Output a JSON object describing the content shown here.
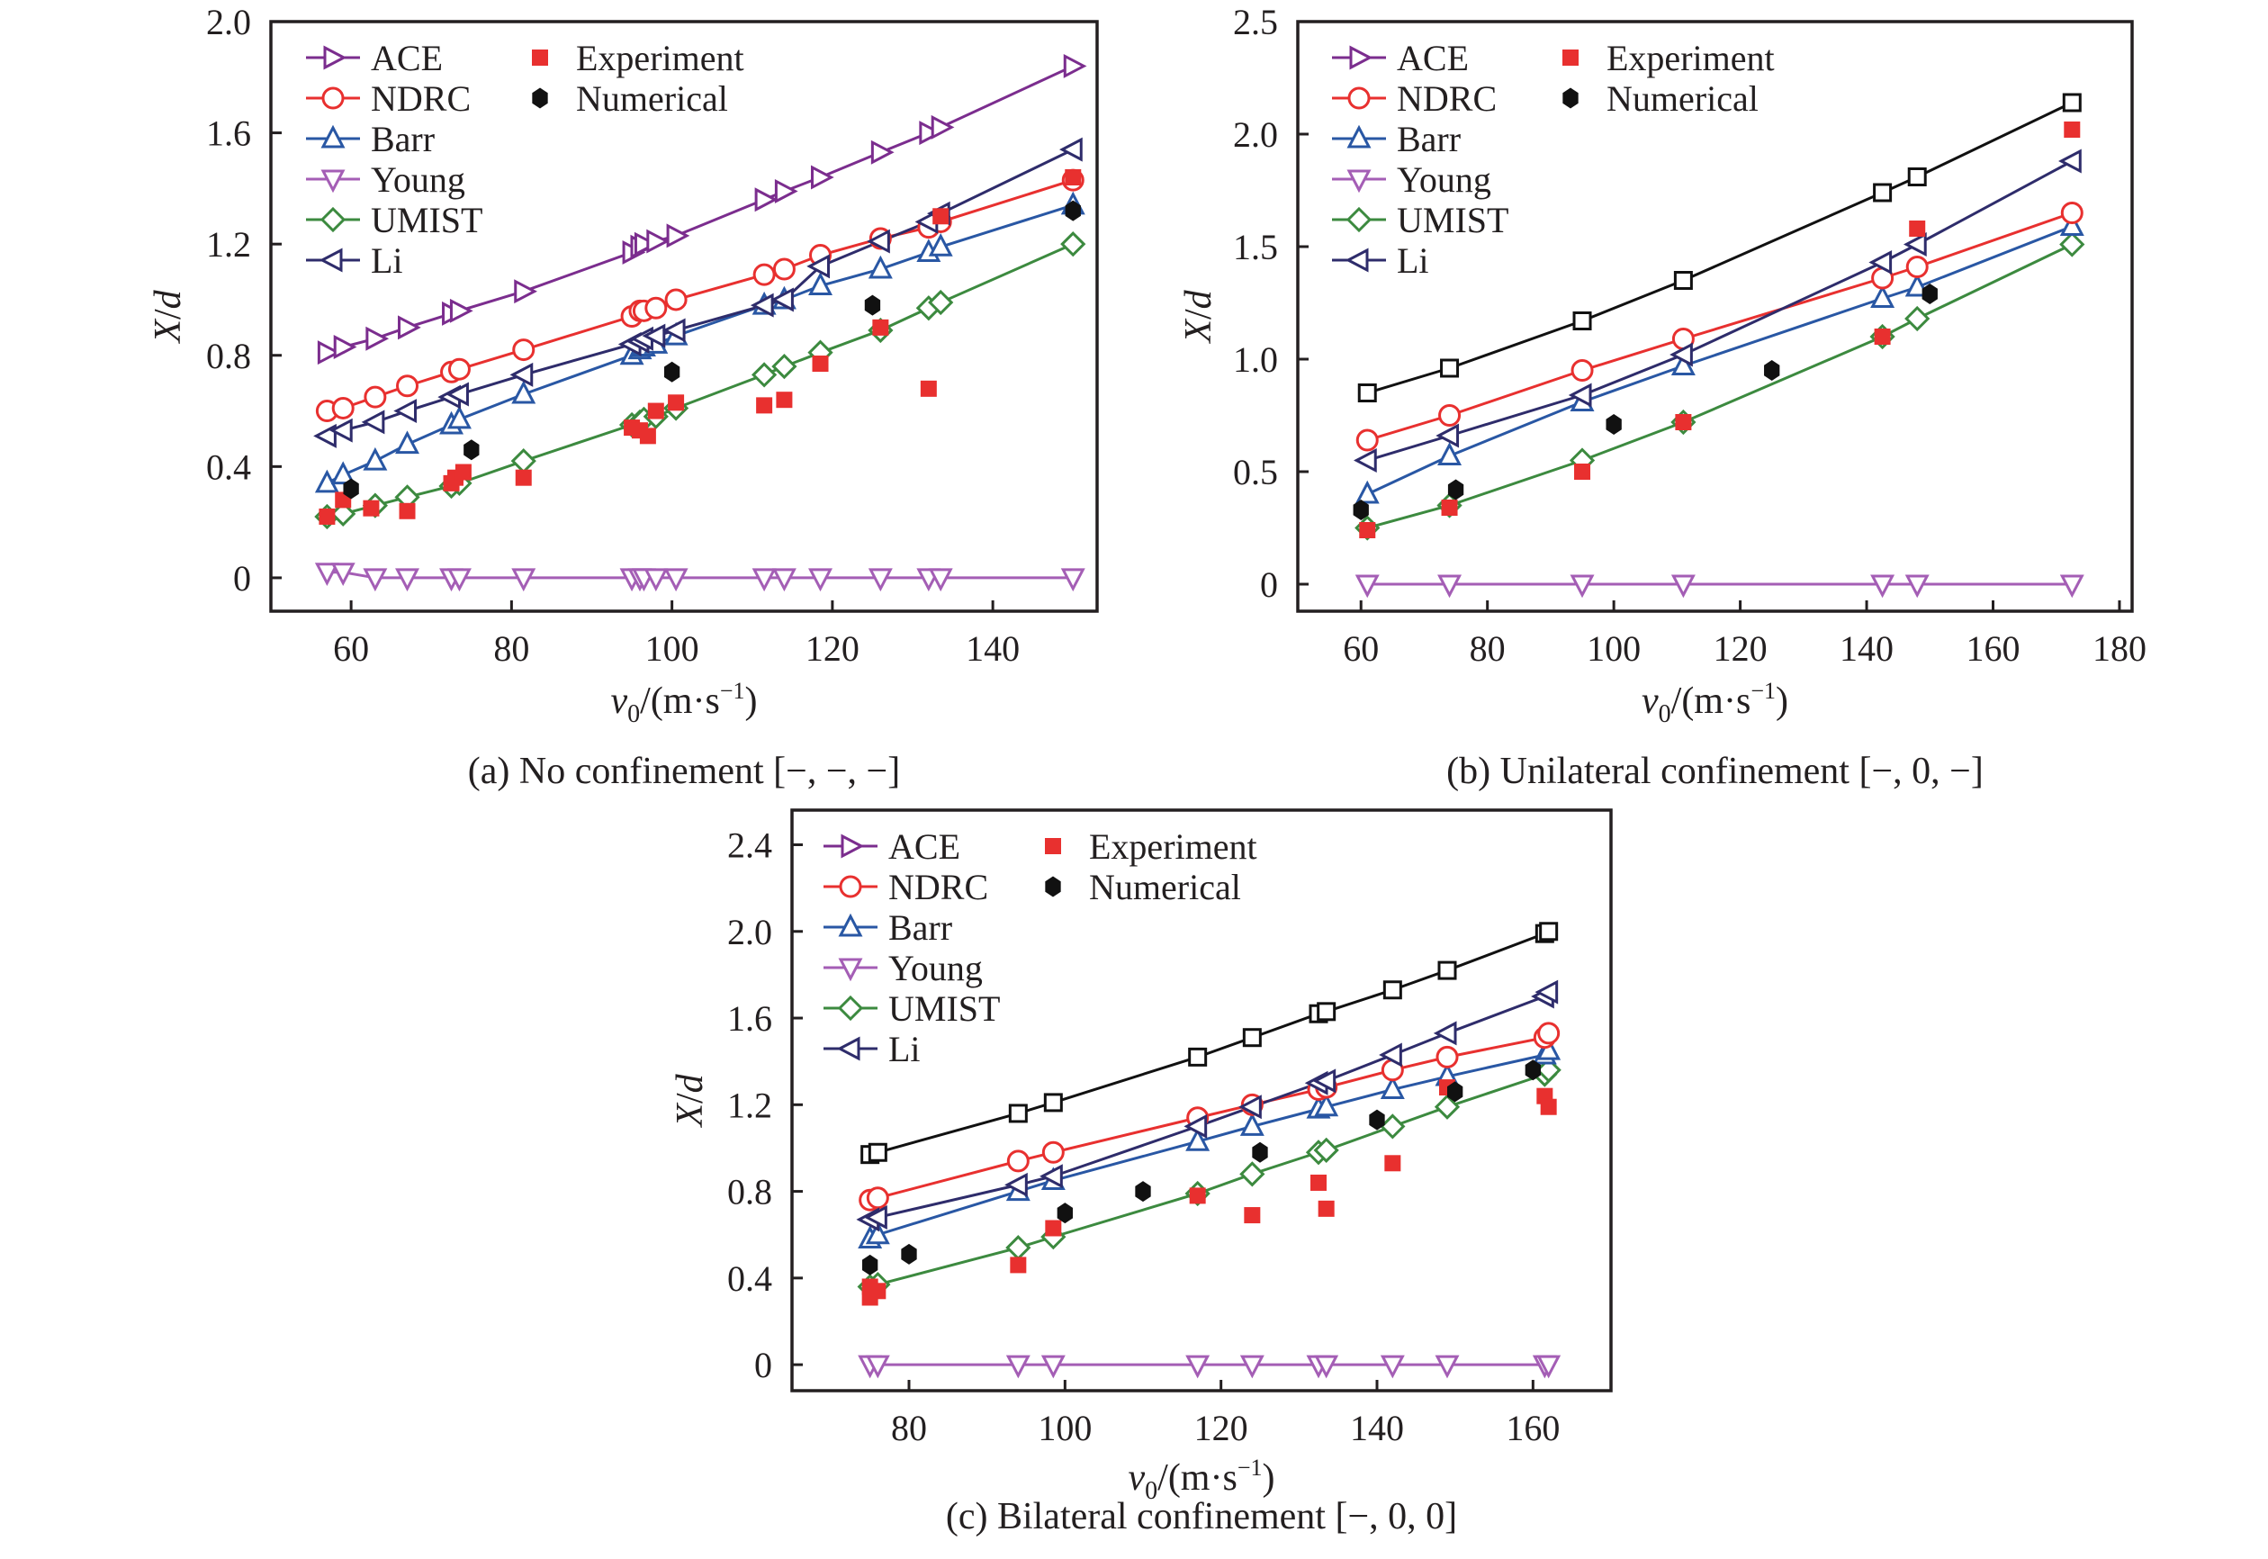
{
  "chart_data": [
    {
      "type": "line",
      "panel": "a",
      "caption": "(a) No confinement [−, −, −]",
      "xlabel_var": "v",
      "xlabel_sub": "0",
      "xlabel_unit": "/(m·s",
      "xlabel_sup": "−1",
      "xlabel_close": ")",
      "ylabel_var1": "X",
      "ylabel_sep": "/",
      "ylabel_var2": "d",
      "xlim": [
        50,
        153
      ],
      "ylim": [
        -0.12,
        2.0
      ],
      "xticks": [
        60,
        80,
        100,
        120,
        140
      ],
      "xtick_labels": [
        "60",
        "80",
        "100",
        "120",
        "140"
      ],
      "yticks": [
        0,
        0.4,
        0.8,
        1.2,
        1.6,
        2.0
      ],
      "ytick_labels": [
        "0",
        "0.4",
        "0.8",
        "1.2",
        "1.6",
        "2.0"
      ],
      "legend_position": "top-left",
      "series": [
        {
          "name": "ACE",
          "marker": "triangle-right",
          "color": "#7b2d8e",
          "x": [
            57,
            59,
            63,
            67,
            72.5,
            73.5,
            81.5,
            95,
            96,
            96.5,
            98,
            100.5,
            111.5,
            114,
            118.5,
            126,
            132,
            133.5,
            150
          ],
          "y": [
            0.81,
            0.83,
            0.86,
            0.9,
            0.95,
            0.96,
            1.03,
            1.17,
            1.19,
            1.2,
            1.21,
            1.23,
            1.36,
            1.39,
            1.44,
            1.53,
            1.6,
            1.62,
            1.84
          ]
        },
        {
          "name": "NDRC",
          "marker": "circle",
          "color": "#e8302f",
          "x": [
            57,
            59,
            63,
            67,
            72.5,
            73.5,
            81.5,
            95,
            96,
            96.5,
            98,
            100.5,
            111.5,
            114,
            118.5,
            126,
            132,
            133.5,
            150
          ],
          "y": [
            0.6,
            0.61,
            0.65,
            0.69,
            0.74,
            0.75,
            0.82,
            0.94,
            0.96,
            0.96,
            0.97,
            1.0,
            1.09,
            1.11,
            1.16,
            1.22,
            1.26,
            1.28,
            1.43
          ]
        },
        {
          "name": "Barr",
          "marker": "triangle-up",
          "color": "#2957a4",
          "x": [
            57,
            59,
            63,
            67,
            72.5,
            73.5,
            81.5,
            95,
            96,
            96.5,
            98,
            100.5,
            111.5,
            114,
            118.5,
            126,
            132,
            133.5,
            150
          ],
          "y": [
            0.34,
            0.37,
            0.42,
            0.48,
            0.55,
            0.57,
            0.66,
            0.8,
            0.82,
            0.83,
            0.84,
            0.87,
            0.98,
            1.0,
            1.05,
            1.11,
            1.17,
            1.19,
            1.34
          ]
        },
        {
          "name": "Young",
          "marker": "triangle-down",
          "color": "#a45eb5",
          "x": [
            57,
            59,
            63,
            67,
            72.5,
            73.5,
            81.5,
            95,
            96,
            96.5,
            98,
            100.5,
            111.5,
            114,
            118.5,
            126,
            132,
            133.5,
            150
          ],
          "y": [
            0.02,
            0.02,
            0,
            0,
            0,
            0,
            0,
            0,
            0,
            0,
            0,
            0,
            0,
            0,
            0,
            0,
            0,
            0,
            0
          ]
        },
        {
          "name": "UMIST",
          "marker": "diamond",
          "color": "#3c8a3f",
          "x": [
            57,
            59,
            63,
            67,
            72.5,
            73.5,
            81.5,
            95,
            96,
            96.5,
            98,
            100.5,
            111.5,
            114,
            118.5,
            126,
            132,
            133.5,
            150
          ],
          "y": [
            0.22,
            0.23,
            0.26,
            0.29,
            0.33,
            0.34,
            0.42,
            0.55,
            0.56,
            0.57,
            0.58,
            0.61,
            0.73,
            0.76,
            0.81,
            0.89,
            0.97,
            0.99,
            1.2
          ]
        },
        {
          "name": "Li",
          "marker": "triangle-left",
          "color": "#2e2c6b",
          "x": [
            57,
            59,
            63,
            67,
            72.5,
            73.5,
            81.5,
            95,
            96,
            96.5,
            98,
            100.5,
            111.5,
            114,
            118.5,
            126,
            132,
            133.5,
            150
          ],
          "y": [
            0.51,
            0.53,
            0.56,
            0.6,
            0.65,
            0.66,
            0.73,
            0.84,
            0.85,
            0.86,
            0.87,
            0.89,
            0.98,
            1.0,
            1.12,
            1.21,
            1.28,
            1.31,
            1.54
          ]
        },
        {
          "name": "Experiment",
          "marker": "square-filled",
          "color": "#e8302f",
          "scatter": true,
          "x": [
            57,
            59,
            62.5,
            67,
            72.5,
            73,
            74,
            81.5,
            95,
            96,
            97,
            98,
            100.5,
            111.5,
            114,
            118.5,
            126,
            132,
            133.5,
            150
          ],
          "y": [
            0.22,
            0.28,
            0.25,
            0.24,
            0.34,
            0.36,
            0.38,
            0.36,
            0.54,
            0.53,
            0.51,
            0.6,
            0.63,
            0.62,
            0.64,
            0.77,
            0.9,
            0.68,
            1.3,
            1.44
          ]
        },
        {
          "name": "Numerical",
          "marker": "hexagon-filled",
          "color": "#111111",
          "scatter": true,
          "x": [
            60,
            75,
            100,
            125,
            150
          ],
          "y": [
            0.32,
            0.46,
            0.74,
            0.98,
            1.32
          ]
        }
      ]
    },
    {
      "type": "line",
      "panel": "b",
      "caption": "(b) Unilateral confinement [−, 0, −]",
      "xlabel_var": "v",
      "xlabel_sub": "0",
      "xlabel_unit": "/(m·s",
      "xlabel_sup": "−1",
      "xlabel_close": ")",
      "ylabel_var1": "X",
      "ylabel_sep": "/",
      "ylabel_var2": "d",
      "xlim": [
        50,
        182
      ],
      "ylim": [
        -0.12,
        2.5
      ],
      "xticks": [
        60,
        80,
        100,
        120,
        140,
        160,
        180
      ],
      "xtick_labels": [
        "60",
        "80",
        "100",
        "120",
        "140",
        "160",
        "180"
      ],
      "yticks": [
        0,
        0.5,
        1.0,
        1.5,
        2.0,
        2.5
      ],
      "ytick_labels": [
        "0",
        "0.5",
        "1.0",
        "1.5",
        "2.0",
        "2.5"
      ],
      "legend_position": "top-left",
      "series": [
        {
          "name": "ACE",
          "marker": "square",
          "color": "#111111",
          "legend_marker": "triangle-right",
          "legend_color": "#7b2d8e",
          "x": [
            61,
            74,
            95,
            111,
            142.5,
            148,
            172.5
          ],
          "y": [
            0.85,
            0.96,
            1.17,
            1.35,
            1.74,
            1.81,
            2.14
          ]
        },
        {
          "name": "NDRC",
          "marker": "circle",
          "color": "#e8302f",
          "x": [
            61,
            74,
            95,
            111,
            142.5,
            148,
            172.5
          ],
          "y": [
            0.64,
            0.75,
            0.95,
            1.09,
            1.36,
            1.41,
            1.65
          ]
        },
        {
          "name": "Barr",
          "marker": "triangle-up",
          "color": "#2957a4",
          "x": [
            61,
            74,
            95,
            111,
            142.5,
            148,
            172.5
          ],
          "y": [
            0.4,
            0.57,
            0.81,
            0.97,
            1.27,
            1.32,
            1.59
          ]
        },
        {
          "name": "Young",
          "marker": "triangle-down",
          "color": "#a45eb5",
          "x": [
            61,
            74,
            95,
            111,
            142.5,
            148,
            172.5
          ],
          "y": [
            0,
            0,
            0,
            0,
            0,
            0,
            0
          ]
        },
        {
          "name": "UMIST",
          "marker": "diamond",
          "color": "#3c8a3f",
          "x": [
            61,
            74,
            95,
            111,
            142.5,
            148,
            172.5
          ],
          "y": [
            0.25,
            0.35,
            0.55,
            0.72,
            1.1,
            1.18,
            1.51
          ]
        },
        {
          "name": "Li",
          "marker": "triangle-left",
          "color": "#2e2c6b",
          "x": [
            61,
            74,
            95,
            111,
            142.5,
            148,
            172.5
          ],
          "y": [
            0.55,
            0.66,
            0.84,
            1.02,
            1.43,
            1.51,
            1.88
          ]
        },
        {
          "name": "Experiment",
          "marker": "square-filled",
          "color": "#e8302f",
          "scatter": true,
          "x": [
            61,
            74,
            95,
            111,
            142.5,
            148,
            172.5
          ],
          "y": [
            0.24,
            0.34,
            0.5,
            0.72,
            1.1,
            1.58,
            2.02
          ]
        },
        {
          "name": "Numerical",
          "marker": "hexagon-filled",
          "color": "#111111",
          "scatter": true,
          "x": [
            60,
            75,
            100,
            125,
            150
          ],
          "y": [
            0.33,
            0.42,
            0.71,
            0.95,
            1.29
          ]
        }
      ]
    },
    {
      "type": "line",
      "panel": "c",
      "caption": "(c) Bilateral confinement [−, 0, 0]",
      "xlabel_var": "v",
      "xlabel_sub": "0",
      "xlabel_unit": "/(m·s",
      "xlabel_sup": "−1",
      "xlabel_close": ")",
      "ylabel_var1": "X",
      "ylabel_sep": "/",
      "ylabel_var2": "d",
      "xlim": [
        65,
        170
      ],
      "ylim": [
        -0.12,
        2.5
      ],
      "xticks": [
        80,
        100,
        120,
        140,
        160
      ],
      "xtick_labels": [
        "80",
        "100",
        "120",
        "140",
        "160"
      ],
      "yticks": [
        0,
        0.4,
        0.8,
        1.2,
        1.6,
        2.0,
        2.4
      ],
      "ytick_labels": [
        "0",
        "0.4",
        "0.8",
        "1.2",
        "1.6",
        "2.0",
        "2.4"
      ],
      "legend_position": "top-left",
      "series": [
        {
          "name": "ACE",
          "marker": "square",
          "color": "#111111",
          "legend_marker": "triangle-right",
          "legend_color": "#7b2d8e",
          "x": [
            75,
            76,
            94,
            98.5,
            117,
            124,
            132.5,
            133.5,
            142,
            149,
            161.5,
            162
          ],
          "y": [
            0.97,
            0.98,
            1.16,
            1.21,
            1.42,
            1.51,
            1.62,
            1.63,
            1.73,
            1.82,
            1.99,
            2.0
          ]
        },
        {
          "name": "NDRC",
          "marker": "circle",
          "color": "#e8302f",
          "x": [
            75,
            76,
            94,
            98.5,
            117,
            124,
            132.5,
            133.5,
            142,
            149,
            161.5,
            162
          ],
          "y": [
            0.76,
            0.77,
            0.94,
            0.98,
            1.14,
            1.2,
            1.27,
            1.28,
            1.36,
            1.42,
            1.51,
            1.53
          ]
        },
        {
          "name": "Barr",
          "marker": "triangle-up",
          "color": "#2957a4",
          "x": [
            75,
            76,
            94,
            98.5,
            117,
            124,
            132.5,
            133.5,
            142,
            149,
            161.5,
            162
          ],
          "y": [
            0.58,
            0.6,
            0.8,
            0.85,
            1.03,
            1.1,
            1.18,
            1.19,
            1.27,
            1.33,
            1.43,
            1.45
          ]
        },
        {
          "name": "Young",
          "marker": "triangle-down",
          "color": "#a45eb5",
          "x": [
            75,
            76,
            94,
            98.5,
            117,
            124,
            132.5,
            133.5,
            142,
            149,
            161.5,
            162
          ],
          "y": [
            0,
            0,
            0,
            0,
            0,
            0,
            0,
            0,
            0,
            0,
            0,
            0
          ]
        },
        {
          "name": "UMIST",
          "marker": "diamond",
          "color": "#3c8a3f",
          "x": [
            75,
            76,
            94,
            98.5,
            117,
            124,
            132.5,
            133.5,
            142,
            149,
            161.5,
            162
          ],
          "y": [
            0.36,
            0.37,
            0.54,
            0.59,
            0.79,
            0.88,
            0.98,
            0.99,
            1.1,
            1.19,
            1.34,
            1.36
          ]
        },
        {
          "name": "Li",
          "marker": "triangle-left",
          "color": "#2e2c6b",
          "x": [
            75,
            76,
            94,
            98.5,
            117,
            124,
            132.5,
            133.5,
            142,
            149,
            161.5,
            162
          ],
          "y": [
            0.67,
            0.68,
            0.83,
            0.87,
            1.1,
            1.19,
            1.3,
            1.31,
            1.43,
            1.53,
            1.7,
            1.72
          ]
        },
        {
          "name": "Experiment",
          "marker": "square-filled",
          "color": "#e8302f",
          "scatter": true,
          "x": [
            75,
            75,
            76,
            94,
            98.5,
            117,
            124,
            132.5,
            133.5,
            142,
            149,
            161.5,
            162
          ],
          "y": [
            0.36,
            0.31,
            0.34,
            0.46,
            0.63,
            0.78,
            0.69,
            0.84,
            0.72,
            0.93,
            1.28,
            1.24,
            1.19
          ]
        },
        {
          "name": "Numerical",
          "marker": "hexagon-filled",
          "color": "#111111",
          "scatter": true,
          "x": [
            75,
            80,
            100,
            110,
            125,
            140,
            150,
            160
          ],
          "y": [
            0.46,
            0.51,
            0.7,
            0.8,
            0.98,
            1.13,
            1.26,
            1.36
          ]
        }
      ]
    }
  ]
}
